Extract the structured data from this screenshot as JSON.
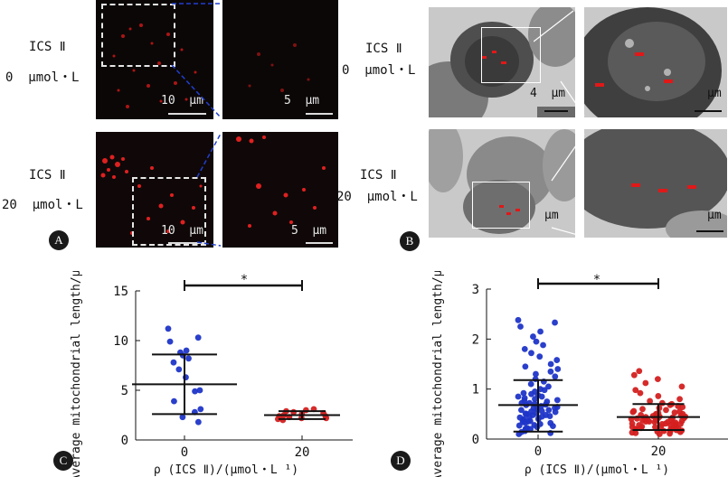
{
  "panel_labels": {
    "a": "A",
    "b": "B",
    "c": "C",
    "d": "D"
  },
  "panel_a": {
    "rows": [
      {
        "line1": "ICS Ⅱ",
        "line2": "0  μmol・L"
      },
      {
        "line1": "ICS Ⅱ",
        "line2": "20  μmol・L"
      }
    ],
    "scale_left": "10  μm",
    "scale_right": "5  μm"
  },
  "panel_b": {
    "rows": [
      {
        "line1": "ICS Ⅱ",
        "line2": "0  μmol・L"
      },
      {
        "line1": "ICS Ⅱ",
        "line2": "20  μmol・L"
      }
    ],
    "scale_left": "4  μm",
    "scale_left_2": "μm",
    "scale_right": "μm"
  },
  "colors": {
    "fluor": "#e02020",
    "blue": "#1f35c8",
    "red": "#d42020",
    "em_bg": "#c9c9c9"
  },
  "chart_data": [
    {
      "type": "scatter",
      "panel": "C",
      "ylabel": "Average mitochondrial length/μm",
      "xlabel": "ρ  (ICS Ⅱ)/(μmol・L ¹)",
      "categories": [
        "0",
        "20"
      ],
      "ylim": [
        0,
        15
      ],
      "yticks": [
        0,
        5,
        10,
        15
      ],
      "significance": "*",
      "series": [
        {
          "name": "0",
          "color": "#1f35c8",
          "mean": 5.6,
          "sd_low": 2.6,
          "sd_high": 8.6,
          "values": [
            11.2,
            10.3,
            9.9,
            9.0,
            8.8,
            8.5,
            8.2,
            7.8,
            7.1,
            6.3,
            5.0,
            4.9,
            3.9,
            3.1,
            2.8,
            2.3,
            1.8
          ]
        },
        {
          "name": "20",
          "color": "#d42020",
          "mean": 2.5,
          "sd_low": 2.1,
          "sd_high": 2.9,
          "values": [
            2.0,
            2.1,
            2.2,
            2.3,
            2.4,
            2.4,
            2.5,
            2.6,
            2.7,
            2.8,
            3.0,
            3.1,
            2.2,
            2.9
          ]
        }
      ]
    },
    {
      "type": "scatter",
      "panel": "D",
      "ylabel": "Average mitochondrial length/μm",
      "xlabel": "ρ  (ICS Ⅱ)/(μmol・L ¹)",
      "categories": [
        "0",
        "20"
      ],
      "ylim": [
        0,
        3
      ],
      "yticks": [
        0,
        1,
        2,
        3
      ],
      "significance": "*",
      "series": [
        {
          "name": "0",
          "color": "#1f35c8",
          "mean": 0.68,
          "sd_low": 0.15,
          "sd_high": 1.18,
          "values": [
            2.38,
            2.33,
            2.25,
            2.15,
            2.05,
            1.95,
            1.88,
            1.8,
            1.72,
            1.65,
            1.58,
            1.5,
            1.45,
            1.4,
            1.35,
            1.3,
            1.25,
            1.2,
            1.15,
            1.1,
            1.05,
            1.0,
            0.98,
            0.95,
            0.92,
            0.9,
            0.88,
            0.85,
            0.82,
            0.8,
            0.78,
            0.75,
            0.72,
            0.7,
            0.68,
            0.66,
            0.64,
            0.62,
            0.6,
            0.58,
            0.56,
            0.54,
            0.52,
            0.5,
            0.48,
            0.46,
            0.44,
            0.42,
            0.4,
            0.38,
            0.36,
            0.34,
            0.32,
            0.3,
            0.28,
            0.26,
            0.24,
            0.22,
            0.2,
            0.18,
            0.16,
            0.14,
            0.12,
            0.1,
            0.72,
            0.58,
            0.45,
            0.35,
            0.62,
            0.55,
            0.48,
            0.4,
            0.33,
            0.27,
            0.21,
            0.85,
            0.77,
            0.69,
            0.51,
            0.43
          ]
        },
        {
          "name": "20",
          "color": "#d42020",
          "mean": 0.44,
          "sd_low": 0.18,
          "sd_high": 0.7,
          "values": [
            1.36,
            1.28,
            1.2,
            1.12,
            1.05,
            0.98,
            0.92,
            0.86,
            0.8,
            0.76,
            0.72,
            0.68,
            0.64,
            0.6,
            0.58,
            0.56,
            0.54,
            0.52,
            0.5,
            0.48,
            0.47,
            0.46,
            0.45,
            0.44,
            0.43,
            0.42,
            0.41,
            0.4,
            0.39,
            0.38,
            0.37,
            0.36,
            0.35,
            0.34,
            0.33,
            0.32,
            0.31,
            0.3,
            0.29,
            0.28,
            0.27,
            0.26,
            0.25,
            0.24,
            0.23,
            0.22,
            0.21,
            0.2,
            0.19,
            0.18,
            0.17,
            0.16,
            0.15,
            0.14,
            0.13,
            0.12,
            0.11,
            0.1,
            0.55,
            0.5,
            0.45,
            0.4,
            0.35,
            0.3,
            0.25,
            0.2,
            0.62,
            0.48,
            0.38,
            0.28,
            0.7,
            0.44,
            0.34,
            0.24,
            0.16,
            0.66,
            0.53,
            0.42,
            0.31,
            0.22
          ]
        }
      ]
    }
  ]
}
